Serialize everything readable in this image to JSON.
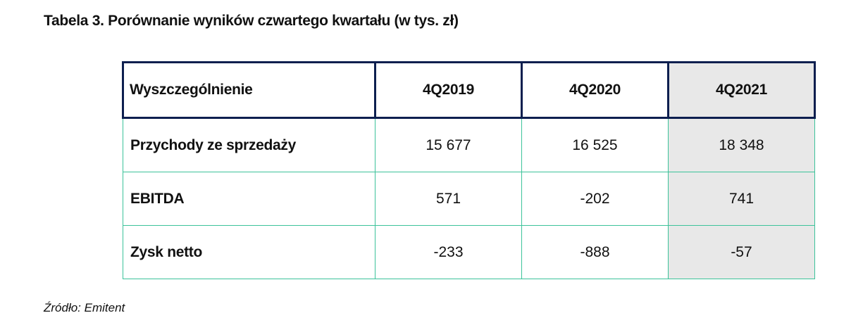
{
  "header": {
    "title": "Tabela 3. Porównanie wyników czwartego kwartału (w tys. zł)"
  },
  "table": {
    "columns": [
      "Wyszczególnienie",
      "4Q2019",
      "4Q2020",
      "4Q2021"
    ],
    "rows": [
      [
        "Przychody ze sprzedaży",
        "15 677",
        "16 525",
        "18 348"
      ],
      [
        "EBITDA",
        "571",
        "-202",
        "741"
      ],
      [
        "Zysk netto",
        "-233",
        "-888",
        "-57"
      ]
    ]
  },
  "source": "Źródło: Emitent"
}
